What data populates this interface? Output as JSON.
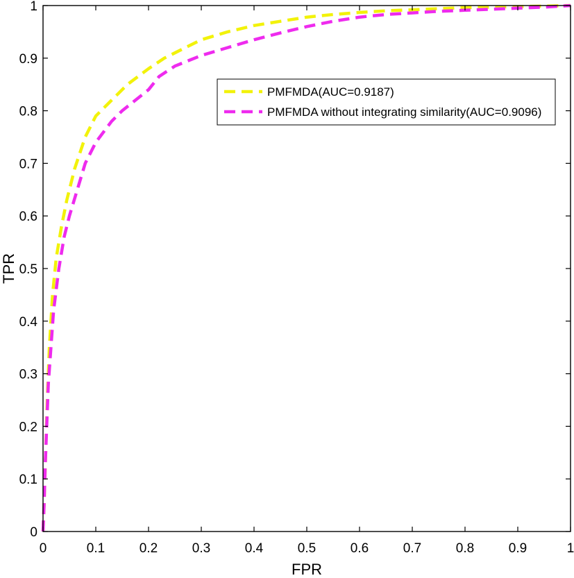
{
  "chart_data": {
    "type": "line",
    "title": "",
    "xlabel": "FPR",
    "ylabel": "TPR",
    "xlim": [
      0,
      1
    ],
    "ylim": [
      0,
      1
    ],
    "xticks": [
      0,
      0.1,
      0.2,
      0.3,
      0.4,
      0.5,
      0.6,
      0.7,
      0.8,
      0.9,
      1
    ],
    "yticks": [
      0,
      0.1,
      0.2,
      0.3,
      0.4,
      0.5,
      0.6,
      0.7,
      0.8,
      0.9,
      1
    ],
    "xtick_labels": [
      "0",
      "0.1",
      "0.2",
      "0.3",
      "0.4",
      "0.5",
      "0.6",
      "0.7",
      "0.8",
      "0.9",
      "1"
    ],
    "ytick_labels": [
      "0",
      "0.1",
      "0.2",
      "0.3",
      "0.4",
      "0.5",
      "0.6",
      "0.7",
      "0.8",
      "0.9",
      "1"
    ],
    "grid": false,
    "legend_position": "top-right",
    "series": [
      {
        "name": "PMFMDA(AUC=0.9187)",
        "color": "#f2f20a",
        "line_style": "dashed",
        "x": [
          0,
          0.002,
          0.005,
          0.008,
          0.012,
          0.018,
          0.025,
          0.035,
          0.045,
          0.06,
          0.08,
          0.1,
          0.13,
          0.16,
          0.2,
          0.23,
          0.27,
          0.3,
          0.35,
          0.4,
          0.45,
          0.5,
          0.55,
          0.6,
          0.65,
          0.7,
          0.75,
          0.8,
          0.85,
          0.9,
          0.95,
          1.0
        ],
        "y": [
          0,
          0.05,
          0.15,
          0.25,
          0.35,
          0.45,
          0.52,
          0.58,
          0.63,
          0.69,
          0.75,
          0.79,
          0.82,
          0.85,
          0.88,
          0.9,
          0.92,
          0.935,
          0.95,
          0.962,
          0.97,
          0.978,
          0.983,
          0.987,
          0.99,
          0.992,
          0.994,
          0.996,
          0.997,
          0.998,
          0.999,
          1.0
        ]
      },
      {
        "name": "PMFMDA without integrating similarity(AUC=0.9096)",
        "color": "#ee2bee",
        "line_style": "dashed",
        "x": [
          0,
          0.002,
          0.004,
          0.007,
          0.01,
          0.015,
          0.02,
          0.03,
          0.04,
          0.05,
          0.065,
          0.08,
          0.1,
          0.13,
          0.15,
          0.2,
          0.22,
          0.25,
          0.3,
          0.35,
          0.4,
          0.45,
          0.5,
          0.55,
          0.6,
          0.65,
          0.7,
          0.75,
          0.8,
          0.85,
          0.9,
          0.95,
          1.0
        ],
        "y": [
          0,
          0.05,
          0.12,
          0.2,
          0.28,
          0.35,
          0.42,
          0.5,
          0.56,
          0.6,
          0.65,
          0.7,
          0.74,
          0.78,
          0.8,
          0.84,
          0.865,
          0.885,
          0.905,
          0.92,
          0.935,
          0.948,
          0.96,
          0.97,
          0.978,
          0.983,
          0.986,
          0.989,
          0.991,
          0.993,
          0.995,
          0.997,
          1.0
        ]
      }
    ]
  }
}
